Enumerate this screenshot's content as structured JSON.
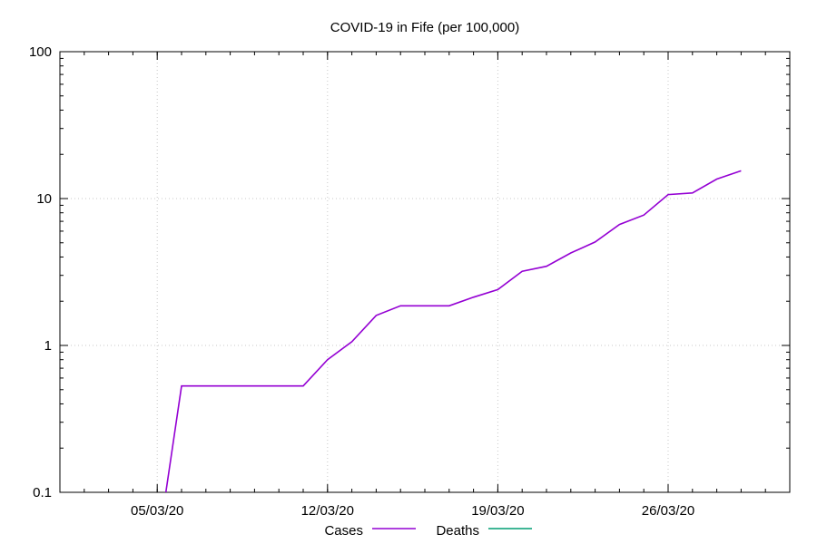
{
  "chart_data": {
    "type": "line",
    "title": "COVID-19 in Fife (per 100,000)",
    "xlabel": "",
    "ylabel": "",
    "y_scale": "log",
    "ylim": [
      0.1,
      100
    ],
    "xlim": [
      "2020-03-01",
      "2020-03-31"
    ],
    "grid": true,
    "legend_position": "bottom",
    "x_ticks": [
      {
        "date": "2020-03-05",
        "label": "05/03/20"
      },
      {
        "date": "2020-03-12",
        "label": "12/03/20"
      },
      {
        "date": "2020-03-19",
        "label": "19/03/20"
      },
      {
        "date": "2020-03-26",
        "label": "26/03/20"
      }
    ],
    "y_ticks": [
      {
        "value": 0.1,
        "label": "0.1"
      },
      {
        "value": 1,
        "label": "1"
      },
      {
        "value": 10,
        "label": "10"
      },
      {
        "value": 100,
        "label": "100"
      }
    ],
    "series": [
      {
        "name": "Cases",
        "color": "#9400d3",
        "points": [
          {
            "x": "2020-03-05",
            "y": 0.04
          },
          {
            "x": "2020-03-06",
            "y": 0.53
          },
          {
            "x": "2020-03-07",
            "y": 0.53
          },
          {
            "x": "2020-03-08",
            "y": 0.53
          },
          {
            "x": "2020-03-09",
            "y": 0.53
          },
          {
            "x": "2020-03-10",
            "y": 0.53
          },
          {
            "x": "2020-03-11",
            "y": 0.53
          },
          {
            "x": "2020-03-12",
            "y": 0.8
          },
          {
            "x": "2020-03-13",
            "y": 1.06
          },
          {
            "x": "2020-03-14",
            "y": 1.6
          },
          {
            "x": "2020-03-15",
            "y": 1.86
          },
          {
            "x": "2020-03-16",
            "y": 1.86
          },
          {
            "x": "2020-03-17",
            "y": 1.86
          },
          {
            "x": "2020-03-18",
            "y": 2.13
          },
          {
            "x": "2020-03-19",
            "y": 2.4
          },
          {
            "x": "2020-03-20",
            "y": 3.2
          },
          {
            "x": "2020-03-21",
            "y": 3.46
          },
          {
            "x": "2020-03-22",
            "y": 4.26
          },
          {
            "x": "2020-03-23",
            "y": 5.06
          },
          {
            "x": "2020-03-24",
            "y": 6.66
          },
          {
            "x": "2020-03-25",
            "y": 7.72
          },
          {
            "x": "2020-03-26",
            "y": 10.65
          },
          {
            "x": "2020-03-27",
            "y": 10.92
          },
          {
            "x": "2020-03-28",
            "y": 13.58
          },
          {
            "x": "2020-03-29",
            "y": 15.44
          }
        ]
      },
      {
        "name": "Deaths",
        "color": "#009e73",
        "points": []
      }
    ]
  }
}
